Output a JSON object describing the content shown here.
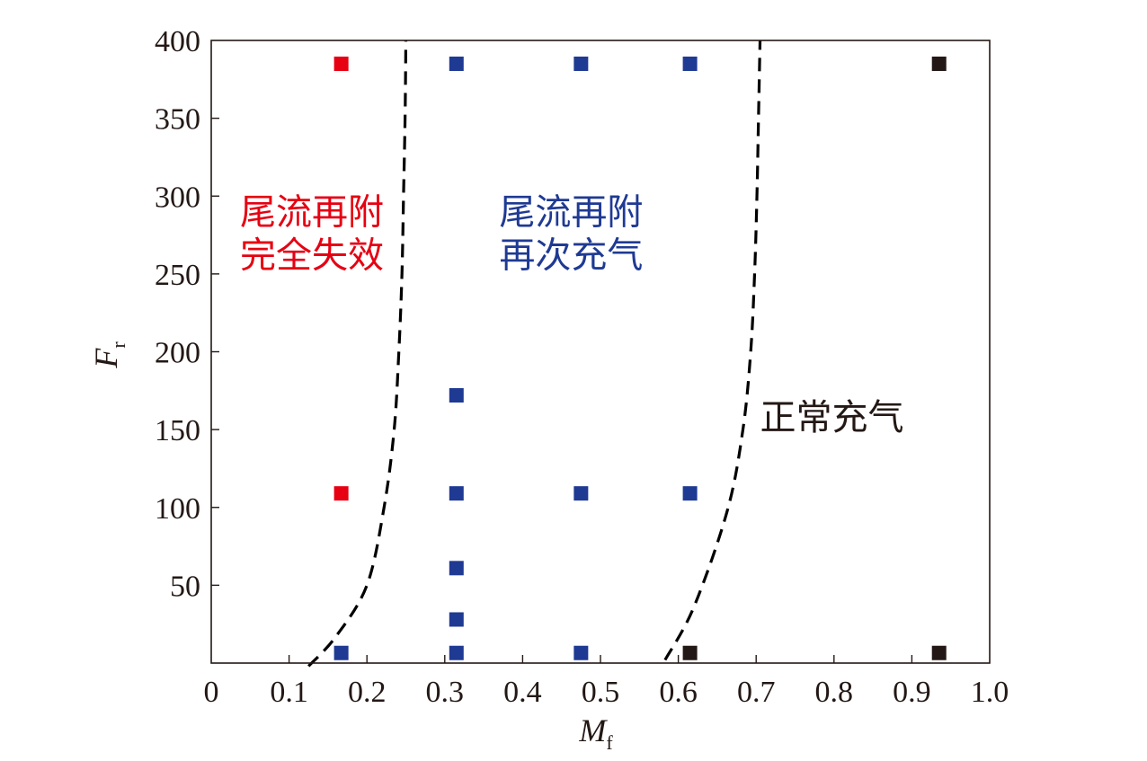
{
  "chart_data": {
    "type": "scatter",
    "x_axis": {
      "label_main": "M",
      "label_sub": "f",
      "range": [
        0,
        1.0
      ],
      "ticks": [
        0,
        0.1,
        0.2,
        0.3,
        0.4,
        0.5,
        0.6,
        0.7,
        0.8,
        0.9,
        1.0
      ],
      "tick_labels": [
        "0",
        "0.1",
        "0.2",
        "0.3",
        "0.4",
        "0.5",
        "0.6",
        "0.7",
        "0.8",
        "0.9",
        "1.0"
      ]
    },
    "y_axis": {
      "label_main": "F",
      "label_sub": "r",
      "range": [
        0,
        400
      ],
      "ticks": [
        50,
        100,
        150,
        200,
        250,
        300,
        350,
        400
      ],
      "tick_labels": [
        "50",
        "100",
        "150",
        "200",
        "250",
        "300",
        "350",
        "400"
      ]
    },
    "grid": false,
    "series": [
      {
        "color": "#e60012",
        "points": [
          {
            "x": 0.167,
            "y": 385
          },
          {
            "x": 0.167,
            "y": 109
          }
        ]
      },
      {
        "color": "#1f3a93",
        "points": [
          {
            "x": 0.167,
            "y": 6.5
          },
          {
            "x": 0.315,
            "y": 385
          },
          {
            "x": 0.315,
            "y": 172
          },
          {
            "x": 0.315,
            "y": 109
          },
          {
            "x": 0.315,
            "y": 61
          },
          {
            "x": 0.315,
            "y": 28
          },
          {
            "x": 0.315,
            "y": 6.5
          },
          {
            "x": 0.475,
            "y": 385
          },
          {
            "x": 0.475,
            "y": 109
          },
          {
            "x": 0.475,
            "y": 6.5
          },
          {
            "x": 0.615,
            "y": 385
          },
          {
            "x": 0.615,
            "y": 109
          }
        ]
      },
      {
        "color": "#231815",
        "points": [
          {
            "x": 0.615,
            "y": 6.5
          },
          {
            "x": 0.935,
            "y": 385
          },
          {
            "x": 0.935,
            "y": 6.5
          }
        ]
      }
    ],
    "boundaries": [
      {
        "style": "dashed",
        "color": "#000000",
        "points": [
          {
            "x": 0.125,
            "y": -2
          },
          {
            "x": 0.16,
            "y": 17
          },
          {
            "x": 0.2,
            "y": 50
          },
          {
            "x": 0.222,
            "y": 100
          },
          {
            "x": 0.235,
            "y": 150
          },
          {
            "x": 0.241,
            "y": 200
          },
          {
            "x": 0.245,
            "y": 250
          },
          {
            "x": 0.247,
            "y": 300
          },
          {
            "x": 0.249,
            "y": 350
          },
          {
            "x": 0.25,
            "y": 400
          }
        ]
      },
      {
        "style": "dashed",
        "color": "#000000",
        "points": [
          {
            "x": 0.583,
            "y": 2
          },
          {
            "x": 0.62,
            "y": 36
          },
          {
            "x": 0.663,
            "y": 98
          },
          {
            "x": 0.683,
            "y": 150
          },
          {
            "x": 0.693,
            "y": 200
          },
          {
            "x": 0.698,
            "y": 250
          },
          {
            "x": 0.701,
            "y": 300
          },
          {
            "x": 0.703,
            "y": 350
          },
          {
            "x": 0.705,
            "y": 400
          }
        ]
      }
    ],
    "annotations": [
      {
        "lines": [
          "尾流再附",
          "完全失效"
        ],
        "color": "#e60012",
        "at_x": 0.037,
        "at_y": 282
      },
      {
        "lines": [
          "尾流再附",
          "再次充气"
        ],
        "color": "#1f3a93",
        "at_x": 0.37,
        "at_y": 282
      },
      {
        "lines": [
          "正常充气"
        ],
        "color": "#231815",
        "at_x": 0.705,
        "at_y": 150
      }
    ]
  }
}
